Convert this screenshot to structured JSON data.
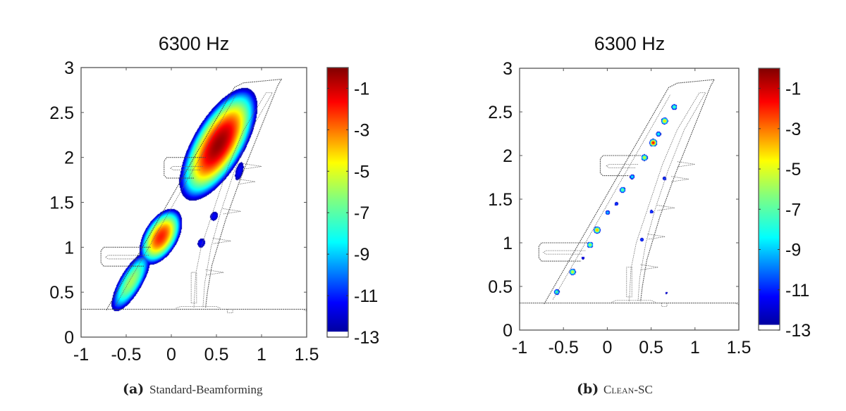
{
  "chart_data": [
    {
      "type": "heatmap",
      "panel": "a",
      "title": "6300 Hz",
      "caption_label": "(a)",
      "caption_text": "Standard-Beamforming",
      "xlabel": "",
      "ylabel": "",
      "xlim": [
        -1,
        1.5
      ],
      "ylim": [
        0,
        3
      ],
      "xticks": [
        -1,
        -0.5,
        0,
        0.5,
        1,
        1.5
      ],
      "yticks": [
        0,
        0.5,
        1,
        1.5,
        2,
        2.5,
        3
      ],
      "colorbar": {
        "colormap": "jet",
        "range": [
          -13,
          0
        ],
        "ticks": [
          -1,
          -3,
          -5,
          -7,
          -9,
          -11,
          -13
        ],
        "below_min_color": "#ffffff"
      },
      "sources": [
        {
          "x": 0.52,
          "y": 2.15,
          "level": -0.3,
          "spread": [
            0.17,
            0.42
          ],
          "angle": 60
        },
        {
          "x": -0.12,
          "y": 1.12,
          "level": -2.0,
          "spread": [
            0.12,
            0.22
          ],
          "angle": 60
        },
        {
          "x": -0.45,
          "y": 0.62,
          "level": -6.0,
          "spread": [
            0.1,
            0.3
          ],
          "angle": 60
        },
        {
          "x": 0.25,
          "y": 1.85,
          "level": -8.5,
          "spread": [
            0.13,
            0.25
          ],
          "angle": 60
        },
        {
          "x": 0.7,
          "y": 2.55,
          "level": -9.0,
          "spread": [
            0.11,
            0.22
          ],
          "angle": 60
        },
        {
          "x": 0.75,
          "y": 1.85,
          "level": -11.5,
          "spread": [
            0.07,
            0.18
          ],
          "angle": 75
        },
        {
          "x": 0.47,
          "y": 1.35,
          "level": -11.5,
          "spread": [
            0.07,
            0.09
          ],
          "angle": 70
        },
        {
          "x": 0.33,
          "y": 1.05,
          "level": -11.5,
          "spread": [
            0.07,
            0.09
          ],
          "angle": 70
        }
      ]
    },
    {
      "type": "heatmap",
      "panel": "b",
      "title": "6300 Hz",
      "caption_label": "(b)",
      "caption_text": "Clean-SC",
      "xlabel": "",
      "ylabel": "",
      "xlim": [
        -1,
        1.5
      ],
      "ylim": [
        0,
        3
      ],
      "xticks": [
        -1,
        -0.5,
        0,
        0.5,
        1,
        1.5
      ],
      "yticks": [
        0,
        0.5,
        1,
        1.5,
        2,
        2.5,
        3
      ],
      "colorbar": {
        "colormap": "jet",
        "range": [
          -13,
          0
        ],
        "ticks": [
          -1,
          -3,
          -5,
          -7,
          -9,
          -11,
          -13
        ],
        "below_min_color": "#ffffff"
      },
      "sources": [
        {
          "x": 0.52,
          "y": 2.15,
          "level": -1.5
        },
        {
          "x": 0.65,
          "y": 2.4,
          "level": -4.0
        },
        {
          "x": 0.76,
          "y": 2.56,
          "level": -7.0
        },
        {
          "x": 0.42,
          "y": 1.98,
          "level": -5.0
        },
        {
          "x": 0.58,
          "y": 2.25,
          "level": -8.0
        },
        {
          "x": 0.28,
          "y": 1.76,
          "level": -8.5
        },
        {
          "x": 0.17,
          "y": 1.61,
          "level": -6.5
        },
        {
          "x": 0.1,
          "y": 1.45,
          "level": -10.5
        },
        {
          "x": 0.0,
          "y": 1.35,
          "level": -9.0
        },
        {
          "x": -0.12,
          "y": 1.15,
          "level": -3.5
        },
        {
          "x": -0.2,
          "y": 0.98,
          "level": -5.5
        },
        {
          "x": -0.28,
          "y": 0.83,
          "level": -11.5
        },
        {
          "x": -0.4,
          "y": 0.67,
          "level": -5.0
        },
        {
          "x": -0.58,
          "y": 0.44,
          "level": -7.0
        },
        {
          "x": 0.65,
          "y": 1.74,
          "level": -10.5
        },
        {
          "x": 0.5,
          "y": 1.36,
          "level": -10.5
        },
        {
          "x": 0.39,
          "y": 1.04,
          "level": -10.5
        },
        {
          "x": 0.67,
          "y": 0.43,
          "level": -12.0
        }
      ]
    }
  ]
}
